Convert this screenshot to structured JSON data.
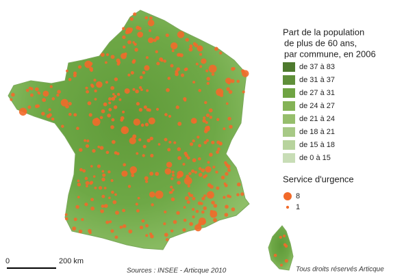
{
  "legend": {
    "title": [
      "Part de la population",
      "de plus de 60 ans,",
      "par commune, en 2006"
    ],
    "classes": [
      {
        "label": "de 37 à 83",
        "color": "#4e7a2e"
      },
      {
        "label": "de 31 à 37",
        "color": "#5f8f39"
      },
      {
        "label": "de 27 à 31",
        "color": "#6fa443"
      },
      {
        "label": "de 24 à 27",
        "color": "#84b356"
      },
      {
        "label": "de 21 à 24",
        "color": "#96be6c"
      },
      {
        "label": "de 18 à 21",
        "color": "#a7c986"
      },
      {
        "label": "de 15 à 18",
        "color": "#b7d39d"
      },
      {
        "label": "de 0 à 15",
        "color": "#c8ddb6"
      }
    ],
    "urgency_title": "Service d'urgence",
    "urgency_sizes": [
      8,
      1
    ],
    "urgency_color": "#f26a2a"
  },
  "scale": {
    "start": "0",
    "end": "200 km"
  },
  "footer": {
    "sources": "Sources : INSEE - Articque 2010",
    "rights": "Tous droits réservés Articque"
  }
}
